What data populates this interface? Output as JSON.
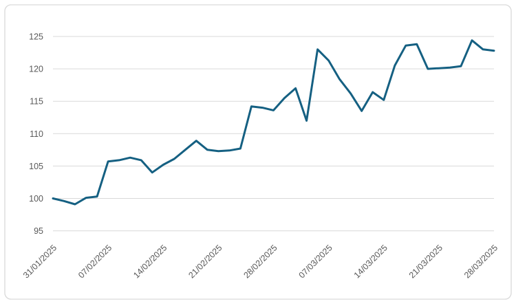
{
  "chart": {
    "title": "",
    "colors": {
      "line": "#156082",
      "gridline": "#d9d9d9",
      "border": "#d9d9d9",
      "label": "#595959",
      "background": "#ffffff"
    }
  },
  "chart_data": {
    "type": "line",
    "title": "",
    "xlabel": "",
    "ylabel": "",
    "x": [
      "31/01/2025",
      "03/02/2025",
      "04/02/2025",
      "05/02/2025",
      "06/02/2025",
      "07/02/2025",
      "10/02/2025",
      "11/02/2025",
      "12/02/2025",
      "13/02/2025",
      "14/02/2025",
      "17/02/2025",
      "18/02/2025",
      "19/02/2025",
      "20/02/2025",
      "21/02/2025",
      "24/02/2025",
      "25/02/2025",
      "26/02/2025",
      "27/02/2025",
      "28/02/2025",
      "03/03/2025",
      "04/03/2025",
      "05/03/2025",
      "06/03/2025",
      "07/03/2025",
      "10/03/2025",
      "11/03/2025",
      "12/03/2025",
      "13/03/2025",
      "14/03/2025",
      "17/03/2025",
      "18/03/2025",
      "19/03/2025",
      "20/03/2025",
      "21/03/2025",
      "24/03/2025",
      "25/03/2025",
      "26/03/2025",
      "27/03/2025",
      "28/03/2025"
    ],
    "values": [
      100.0,
      99.6,
      99.1,
      100.1,
      100.3,
      105.7,
      105.9,
      106.3,
      105.9,
      104.0,
      105.2,
      106.1,
      107.5,
      108.9,
      107.5,
      107.3,
      107.4,
      107.7,
      114.2,
      114.0,
      113.6,
      115.5,
      117.0,
      112.0,
      123.0,
      121.3,
      118.4,
      116.2,
      113.5,
      116.4,
      115.2,
      120.5,
      123.6,
      123.8,
      120.0,
      120.1,
      120.2,
      120.4,
      124.4,
      123.0,
      122.8
    ],
    "x_tick_labels": [
      "31/01/2025",
      "07/02/2025",
      "14/02/2025",
      "21/02/2025",
      "28/02/2025",
      "07/03/2025",
      "14/03/2025",
      "21/03/2025",
      "28/03/2025"
    ],
    "y_ticks": [
      95,
      100,
      105,
      110,
      115,
      120,
      125
    ],
    "ylim": [
      92.5,
      129.5
    ],
    "grid": "horizontal",
    "legend": "none",
    "marker": "none",
    "line_width": 3
  }
}
